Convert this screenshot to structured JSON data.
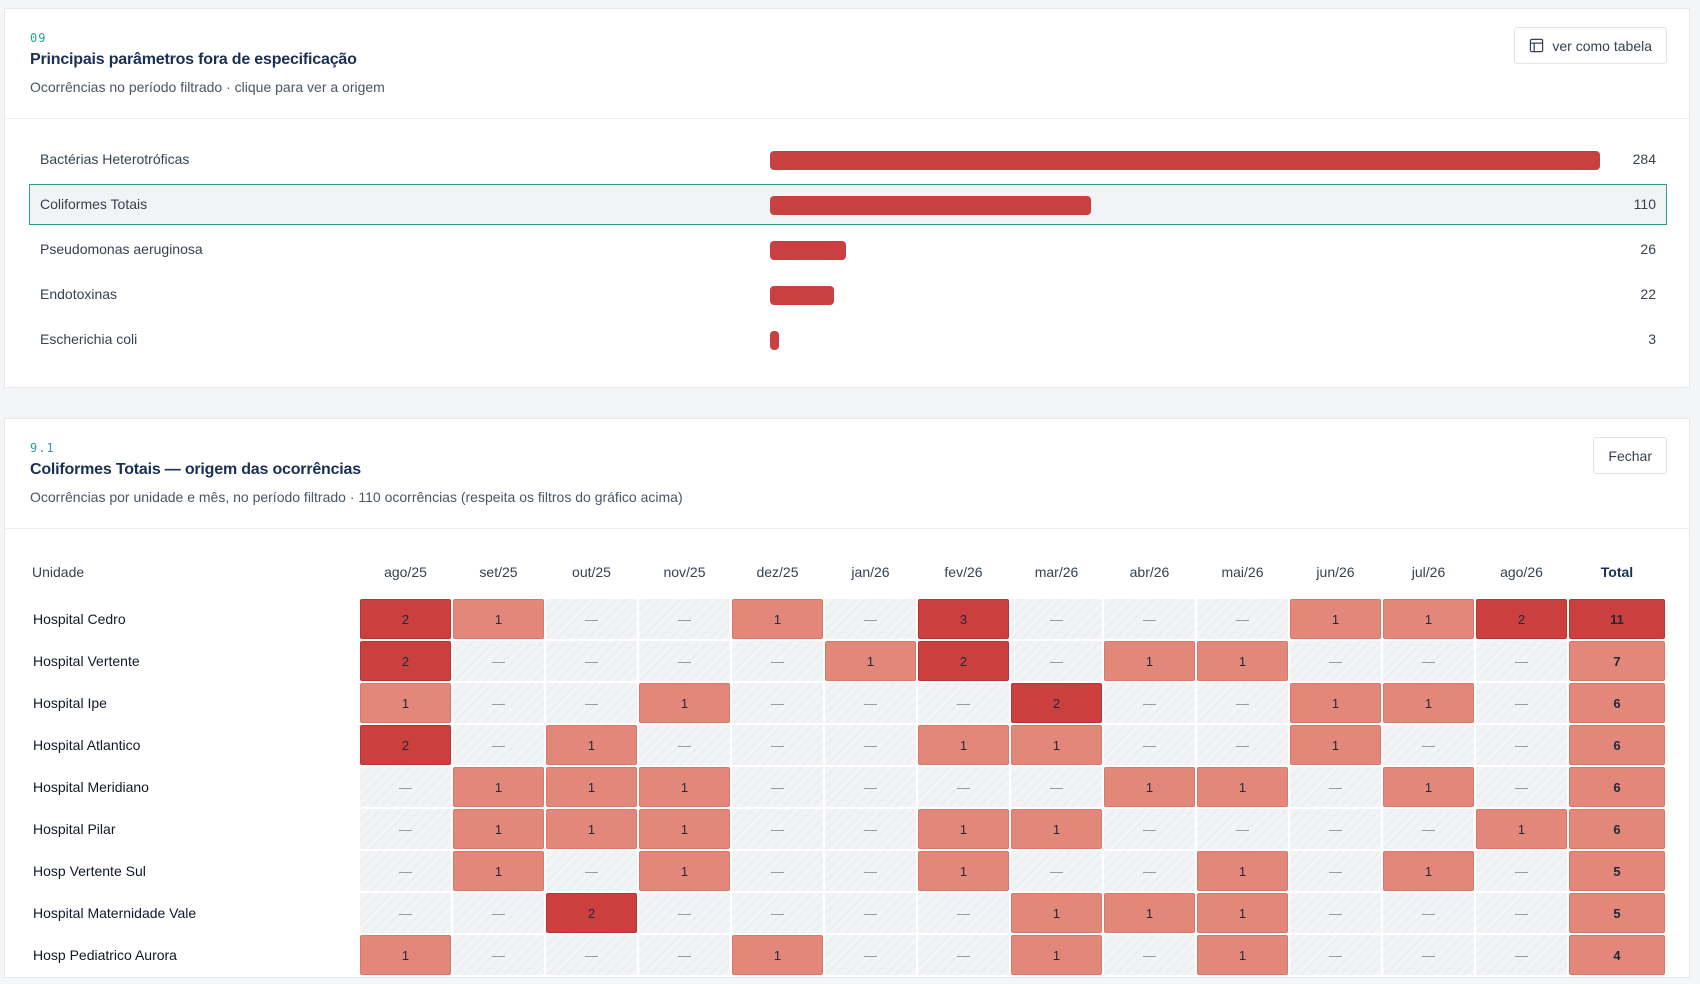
{
  "params_card": {
    "section_number": "09",
    "title": "Principais parâmetros fora de especificação",
    "subtitle": "Ocorrências no período filtrado · clique para ver a origem",
    "table_button_label": "ver como tabela",
    "table_icon": "table-icon"
  },
  "origin_card": {
    "section_number": "9.1",
    "title": "Coliformes Totais — origem das ocorrências",
    "subtitle": "Ocorrências por unidade e mês, no período filtrado · 110 ocorrências (respeita os filtros do gráfico acima)",
    "close_button_label": "Fechar",
    "unit_header": "Unidade",
    "total_header": "Total",
    "empty_symbol": "—"
  },
  "colors": {
    "bar": "#c94040",
    "heat_low": "#e3877a",
    "heat_high": "#cc3f3f",
    "accent": "#2a9d8f",
    "title": "#1a2f55"
  },
  "chart_data": [
    {
      "type": "bar",
      "orientation": "horizontal",
      "categories": [
        "Bactérias Heterotróficas",
        "Coliformes Totais",
        "Pseudomonas aeruginosa",
        "Endotoxinas",
        "Escherichia coli"
      ],
      "values": [
        284,
        110,
        26,
        22,
        3
      ],
      "selected": "Coliformes Totais",
      "xlim": [
        0,
        284
      ]
    },
    {
      "type": "heatmap",
      "columns": [
        "ago/25",
        "set/25",
        "out/25",
        "nov/25",
        "dez/25",
        "jan/26",
        "fev/26",
        "mar/26",
        "abr/26",
        "mai/26",
        "jun/26",
        "jul/26",
        "ago/26"
      ],
      "rows": [
        {
          "unit": "Hospital Cedro",
          "values": [
            2,
            1,
            null,
            null,
            1,
            null,
            3,
            null,
            null,
            null,
            1,
            1,
            2
          ],
          "total": 11
        },
        {
          "unit": "Hospital Vertente",
          "values": [
            2,
            null,
            null,
            null,
            null,
            1,
            2,
            null,
            1,
            1,
            null,
            null,
            null
          ],
          "total": 7
        },
        {
          "unit": "Hospital Ipe",
          "values": [
            1,
            null,
            null,
            1,
            null,
            null,
            null,
            2,
            null,
            null,
            1,
            1,
            null
          ],
          "total": 6
        },
        {
          "unit": "Hospital Atlantico",
          "values": [
            2,
            null,
            1,
            null,
            null,
            null,
            1,
            1,
            null,
            null,
            1,
            null,
            null
          ],
          "total": 6
        },
        {
          "unit": "Hospital Meridiano",
          "values": [
            null,
            1,
            1,
            1,
            null,
            null,
            null,
            null,
            1,
            1,
            null,
            1,
            null
          ],
          "total": 6
        },
        {
          "unit": "Hospital Pilar",
          "values": [
            null,
            1,
            1,
            1,
            null,
            null,
            1,
            1,
            null,
            null,
            null,
            null,
            1
          ],
          "total": 6
        },
        {
          "unit": "Hosp Vertente Sul",
          "values": [
            null,
            1,
            null,
            1,
            null,
            null,
            1,
            null,
            null,
            1,
            null,
            1,
            null
          ],
          "total": 5
        },
        {
          "unit": "Hospital Maternidade Vale",
          "values": [
            null,
            null,
            2,
            null,
            null,
            null,
            null,
            1,
            1,
            1,
            null,
            null,
            null
          ],
          "total": 5
        },
        {
          "unit": "Hosp Pediatrico Aurora",
          "values": [
            1,
            null,
            null,
            null,
            1,
            null,
            null,
            1,
            null,
            1,
            null,
            null,
            null
          ],
          "total": 4
        }
      ]
    }
  ]
}
